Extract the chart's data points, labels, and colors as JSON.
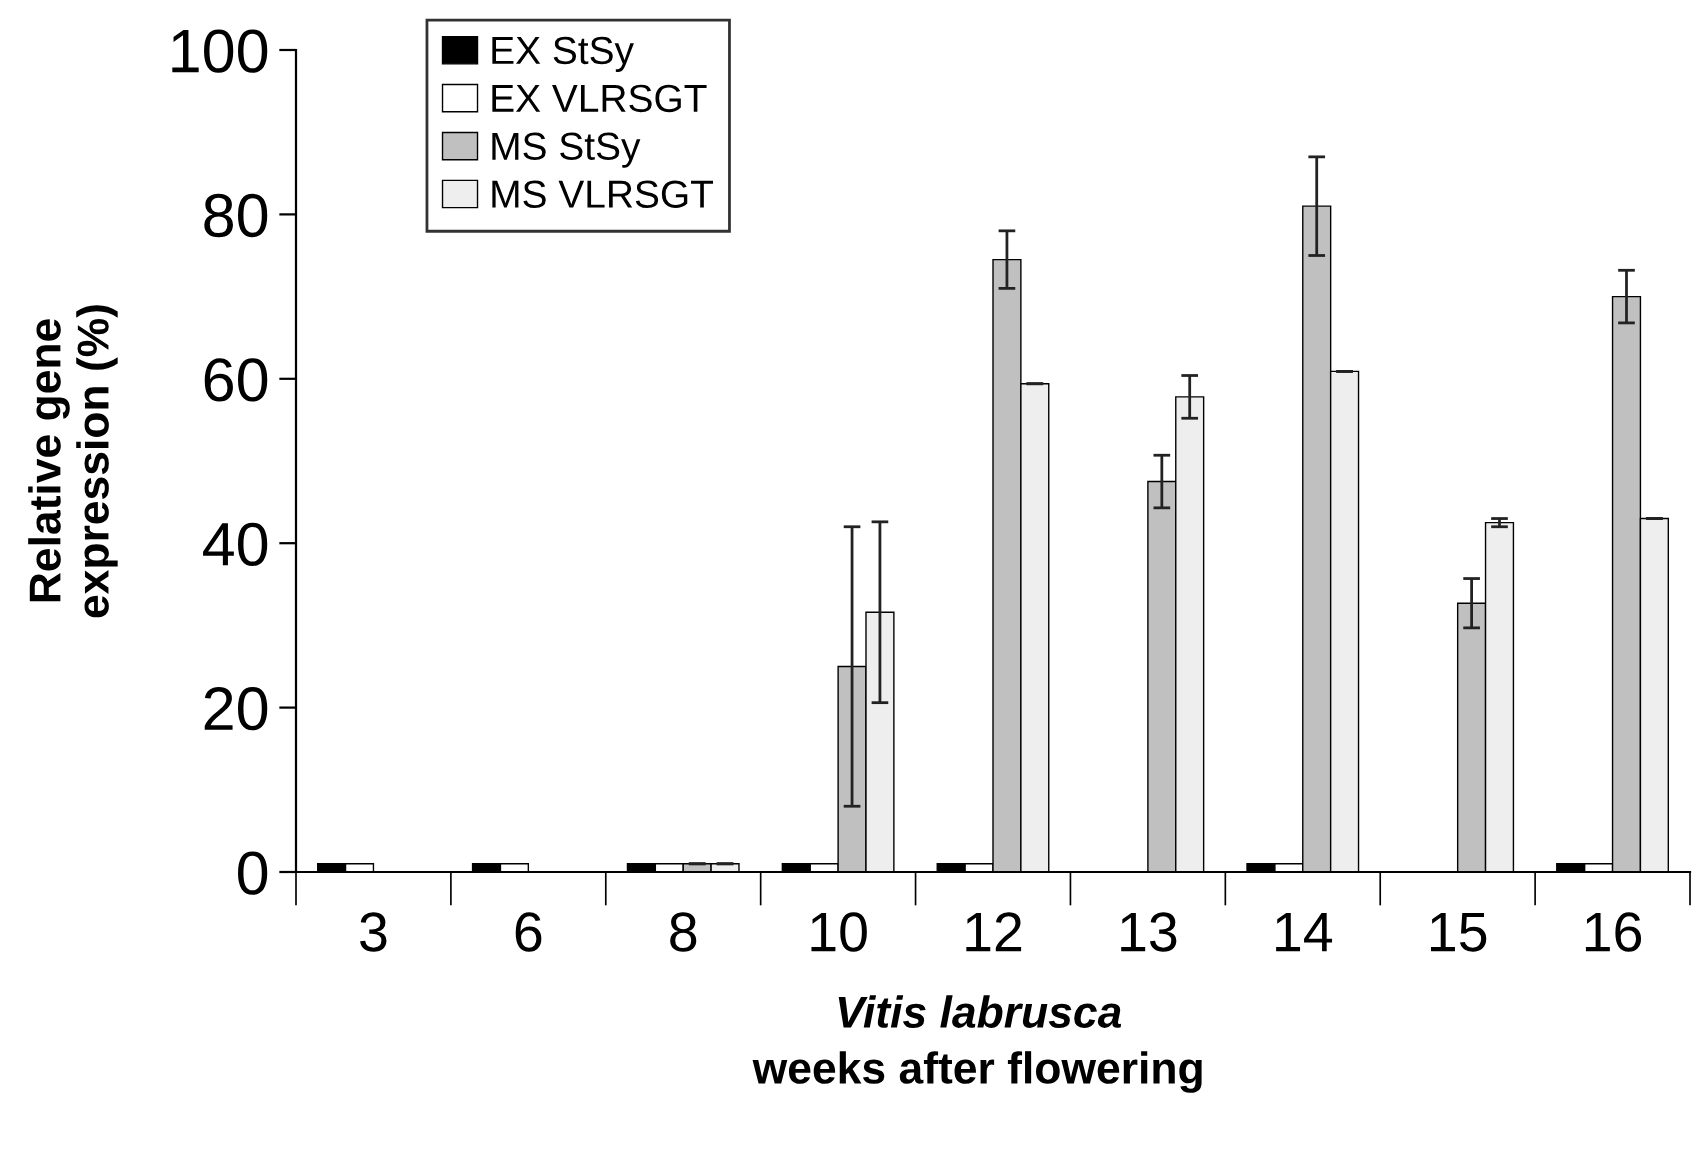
{
  "chart_data": {
    "type": "bar",
    "xlabel": "Vitis labrusca\nweeks after flowering",
    "ylabel": "Relative gene\nexpression (%)",
    "categories": [
      "3",
      "6",
      "8",
      "10",
      "12",
      "13",
      "14",
      "15",
      "16"
    ],
    "series": [
      {
        "name": "EX StSy",
        "color": "#000000",
        "values": [
          1,
          1,
          1,
          1,
          1,
          null,
          1,
          null,
          1
        ]
      },
      {
        "name": "EX VLRSGT",
        "color": "#ffffff",
        "values": [
          1,
          1,
          1,
          1,
          1,
          null,
          1,
          null,
          1
        ]
      },
      {
        "name": "MS StSy",
        "color": "#c0c0c0",
        "values": [
          null,
          null,
          1,
          25,
          74.5,
          47.5,
          81,
          32.7,
          70
        ],
        "errors": [
          null,
          null,
          null,
          17,
          3.5,
          3.2,
          6,
          3,
          3.2
        ]
      },
      {
        "name": "MS VLRSGT",
        "color": "#eeeeee",
        "values": [
          null,
          null,
          1,
          31.6,
          59.4,
          57.8,
          60.9,
          42.5,
          43
        ],
        "errors": [
          null,
          null,
          null,
          11,
          null,
          2.6,
          null,
          0.5,
          null
        ]
      }
    ],
    "ylim": [
      0,
      100
    ],
    "yticks": [
      0,
      20,
      40,
      60,
      80,
      100
    ],
    "grid": false,
    "legend": "top left"
  }
}
